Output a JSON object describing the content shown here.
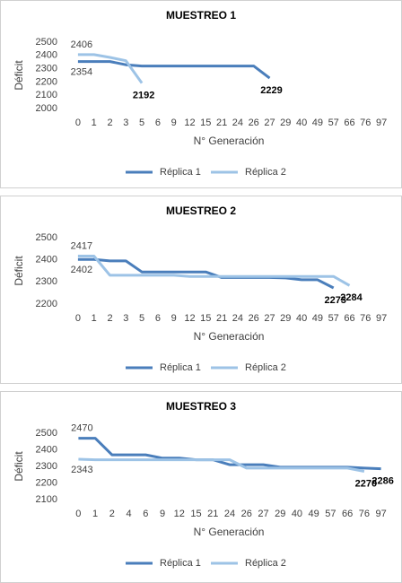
{
  "chart_data": [
    {
      "type": "line",
      "title": "MUESTREO 1",
      "y_label": "Déficit",
      "x_label": "N° Generación",
      "categories": [
        "0",
        "1",
        "2",
        "3",
        "5",
        "6",
        "9",
        "12",
        "15",
        "21",
        "24",
        "26",
        "27",
        "29",
        "40",
        "49",
        "57",
        "66",
        "76",
        "97"
      ],
      "ylim": [
        2000,
        2500
      ],
      "yticks": [
        2000,
        2100,
        2200,
        2300,
        2400,
        2500
      ],
      "grid": false,
      "series": [
        {
          "name": "Réplica 1",
          "color": "#4a7ebb",
          "values": [
            2354,
            2354,
            2354,
            2330,
            2320,
            2320,
            2320,
            2320,
            2320,
            2320,
            2320,
            2320,
            2229,
            null,
            null,
            null,
            null,
            null,
            null,
            null
          ],
          "value_labels": [
            "2354",
            null,
            null,
            null,
            null,
            null,
            null,
            null,
            null,
            null,
            null,
            null,
            "2229",
            null,
            null,
            null,
            null,
            null,
            null,
            null
          ]
        },
        {
          "name": "Réplica 2",
          "color": "#9dc3e6",
          "values": [
            2406,
            2406,
            2385,
            2360,
            2192,
            null,
            null,
            null,
            null,
            null,
            null,
            null,
            null,
            null,
            null,
            null,
            null,
            null,
            null,
            null
          ],
          "value_labels": [
            "2406",
            null,
            null,
            null,
            "2192",
            null,
            null,
            null,
            null,
            null,
            null,
            null,
            null,
            null,
            null,
            null,
            null,
            null,
            null,
            null
          ]
        }
      ]
    },
    {
      "type": "line",
      "title": "MUESTREO 2",
      "y_label": "Déficit",
      "x_label": "N° Generación",
      "categories": [
        "0",
        "1",
        "2",
        "3",
        "5",
        "6",
        "9",
        "12",
        "15",
        "21",
        "24",
        "26",
        "27",
        "29",
        "40",
        "49",
        "57",
        "66",
        "76",
        "97"
      ],
      "ylim": [
        2200,
        2500
      ],
      "yticks": [
        2200,
        2300,
        2400,
        2500
      ],
      "grid": false,
      "series": [
        {
          "name": "Réplica 1",
          "color": "#4a7ebb",
          "values": [
            2402,
            2402,
            2395,
            2395,
            2345,
            2345,
            2345,
            2345,
            2345,
            2320,
            2320,
            2320,
            2320,
            2318,
            2310,
            2310,
            2273,
            null,
            null,
            null
          ],
          "value_labels": [
            "2402",
            null,
            null,
            null,
            null,
            null,
            null,
            null,
            null,
            null,
            null,
            null,
            null,
            null,
            null,
            null,
            "2273",
            null,
            null,
            null
          ]
        },
        {
          "name": "Réplica 2",
          "color": "#9dc3e6",
          "values": [
            2417,
            2417,
            2330,
            2330,
            2330,
            2330,
            2330,
            2325,
            2325,
            2325,
            2325,
            2325,
            2325,
            2325,
            2325,
            2325,
            2325,
            2284,
            null,
            null
          ],
          "value_labels": [
            "2417",
            null,
            null,
            null,
            null,
            null,
            null,
            null,
            null,
            null,
            null,
            null,
            null,
            null,
            null,
            null,
            null,
            "2284",
            null,
            null
          ]
        }
      ]
    },
    {
      "type": "line",
      "title": "MUESTREO 3",
      "y_label": "Déficit",
      "x_label": "N° Generación",
      "categories": [
        "0",
        "1",
        "2",
        "4",
        "6",
        "9",
        "12",
        "15",
        "21",
        "24",
        "26",
        "27",
        "29",
        "40",
        "49",
        "57",
        "66",
        "76",
        "97"
      ],
      "ylim": [
        2100,
        2500
      ],
      "yticks": [
        2100,
        2200,
        2300,
        2400,
        2500
      ],
      "grid": false,
      "series": [
        {
          "name": "Réplica 1",
          "color": "#4a7ebb",
          "values": [
            2470,
            2470,
            2370,
            2370,
            2370,
            2350,
            2350,
            2340,
            2340,
            2310,
            2310,
            2310,
            2295,
            2295,
            2295,
            2295,
            2295,
            2290,
            2286
          ],
          "value_labels": [
            "2470",
            null,
            null,
            null,
            null,
            null,
            null,
            null,
            null,
            null,
            null,
            null,
            null,
            null,
            null,
            null,
            null,
            null,
            "2286"
          ]
        },
        {
          "name": "Réplica 2",
          "color": "#9dc3e6",
          "values": [
            2343,
            2340,
            2340,
            2340,
            2340,
            2340,
            2340,
            2340,
            2340,
            2340,
            2290,
            2290,
            2290,
            2290,
            2290,
            2290,
            2290,
            2270,
            null
          ],
          "value_labels": [
            "2343",
            null,
            null,
            null,
            null,
            null,
            null,
            null,
            null,
            null,
            null,
            null,
            null,
            null,
            null,
            null,
            null,
            "2270",
            null
          ]
        }
      ]
    }
  ]
}
